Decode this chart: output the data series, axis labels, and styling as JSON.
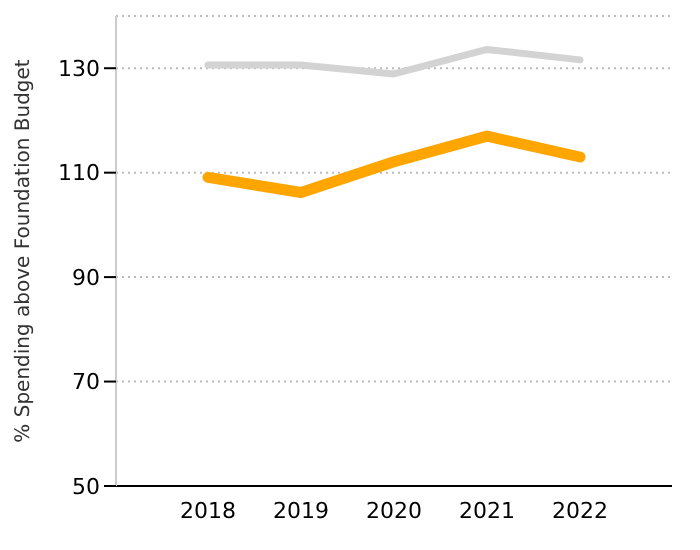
{
  "chart_data": {
    "type": "line",
    "ylabel": "% Spending above Foundation Budget",
    "categories": [
      "2018",
      "2019",
      "2020",
      "2021",
      "2022"
    ],
    "series": [
      {
        "color": "#d3d3d3",
        "values": [
          130.6,
          130.6,
          128.9,
          133.6,
          131.6
        ]
      },
      {
        "color": "#ffa500",
        "values": [
          109.1,
          106.2,
          112.1,
          117.0,
          113.0
        ]
      }
    ],
    "ylim": [
      50,
      140
    ],
    "yticks": [
      50,
      70,
      90,
      110,
      130
    ],
    "grid": "y",
    "marker": "none",
    "line_style": "solid"
  }
}
